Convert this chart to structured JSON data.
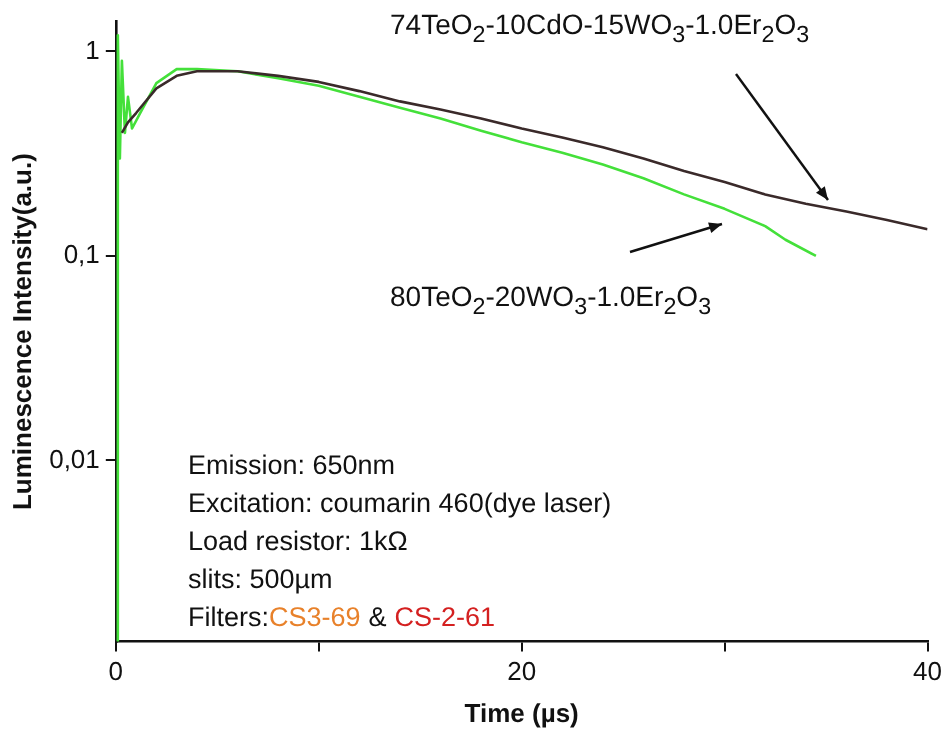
{
  "chart_data": {
    "type": "line",
    "xlabel": "Time (µs)",
    "ylabel": "Luminescence Intensity(a.u.)",
    "log": "y",
    "grid": false,
    "legend": false,
    "marker": "none",
    "line_style": "solid",
    "xlim": [
      0,
      40
    ],
    "xticks": [
      0,
      {
        "value": 10,
        "label": null
      },
      20,
      {
        "value": 30,
        "label": null
      },
      40
    ],
    "ylim": [
      0.0013,
      1.4
    ],
    "yticks": [
      {
        "value": 0.01,
        "label": "0,01"
      },
      {
        "value": 0.1,
        "label": "0,1"
      },
      {
        "value": 1,
        "label": "1"
      }
    ],
    "series": [
      {
        "name": "74TeO$_{2}$-10CdO-15WO$_{3}$-1.0Er$_{2}$O$_{3}$",
        "color": "#3a2a2a",
        "x": [
          0.3,
          0.6,
          1,
          2,
          3,
          4,
          6,
          8,
          10,
          12,
          14,
          16,
          18,
          20,
          22,
          24,
          26,
          28,
          30,
          32,
          34,
          36,
          38,
          40
        ],
        "values": [
          0.4,
          0.45,
          0.5,
          0.66,
          0.76,
          0.8,
          0.8,
          0.76,
          0.71,
          0.64,
          0.57,
          0.52,
          0.47,
          0.42,
          0.38,
          0.34,
          0.3,
          0.26,
          0.23,
          0.2,
          0.18,
          0.165,
          0.15,
          0.135
        ]
      },
      {
        "name": "80TeO$_{2}$-20WO$_{3}$-1.0Er$_{2}$O$_{3}$",
        "color": "#44e03a",
        "x": [
          0.05,
          0.1,
          0.2,
          0.3,
          0.45,
          0.6,
          0.8,
          1.2,
          2,
          3,
          4,
          6,
          8,
          10,
          12,
          14,
          16,
          18,
          20,
          22,
          24,
          26,
          28,
          30,
          32,
          33,
          34.5
        ],
        "values": [
          0.0013,
          1.2,
          0.3,
          0.9,
          0.4,
          0.6,
          0.42,
          0.5,
          0.7,
          0.82,
          0.82,
          0.8,
          0.74,
          0.68,
          0.6,
          0.53,
          0.47,
          0.41,
          0.36,
          0.32,
          0.28,
          0.24,
          0.2,
          0.17,
          0.14,
          0.12,
          0.1
        ]
      }
    ],
    "annotations": [
      "Emission: 650nm",
      "Excitation: coumarin 460(dye laser)",
      "Load resistor: 1kΩ",
      "slits: 500µm",
      "Filters:",
      "CS3-69",
      "&",
      "CS-2-61"
    ]
  }
}
